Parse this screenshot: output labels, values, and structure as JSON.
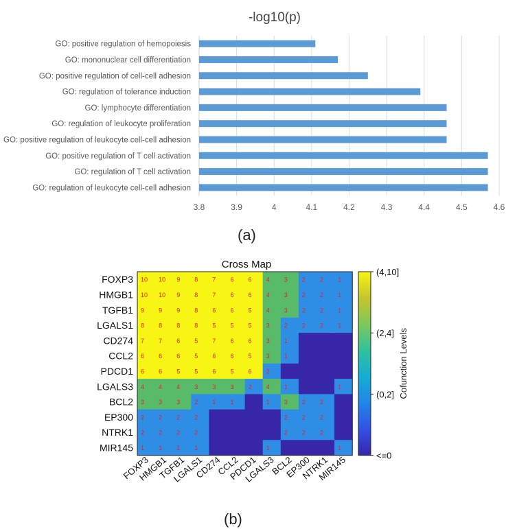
{
  "chart_data": [
    {
      "type": "bar",
      "orientation": "horizontal",
      "title": "-log10(p)",
      "panel_label": "(a)",
      "categories": [
        "GO: positive regulation of hemopoiesis",
        "GO: mononuclear cell differentiation",
        "GO: positive regulation of cell-cell adhesion",
        "GO: regulation of tolerance induction",
        "GO: lymphocyte differentiation",
        "GO: regulation of leukocyte proliferation",
        "GO: positive regulation of leukocyte cell-cell adhesion",
        "GO: positive regulation of T cell activation",
        "GO: regulation of T cell activation",
        "GO: regulation of leukocyte cell-cell adhesion"
      ],
      "values": [
        4.11,
        4.17,
        4.25,
        4.39,
        4.46,
        4.46,
        4.46,
        4.57,
        4.57,
        4.57
      ],
      "xlim": [
        3.8,
        4.6
      ],
      "xticks": [
        "3.8",
        "3.9",
        "4",
        "4.1",
        "4.2",
        "4.3",
        "4.4",
        "4.5",
        "4.6"
      ],
      "grid": "vertical",
      "bar_color": "#5b9bd5"
    },
    {
      "type": "heatmap",
      "title": "Cross Map",
      "panel_label": "(b)",
      "rows": [
        "FOXP3",
        "HMGB1",
        "TGFB1",
        "LGALS1",
        "CD274",
        "CCL2",
        "PDCD1",
        "LGALS3",
        "BCL2",
        "EP300",
        "NTRK1",
        "MIR145"
      ],
      "cols": [
        "FOXP3",
        "HMGB1",
        "TGFB1",
        "LGALS1",
        "CD274",
        "CCL2",
        "PDCD1",
        "LGALS3",
        "BCL2",
        "EP300",
        "NTRK1",
        "MIR145"
      ],
      "values": [
        [
          10,
          10,
          9,
          8,
          7,
          6,
          6,
          4,
          3,
          2,
          2,
          1
        ],
        [
          10,
          10,
          9,
          8,
          7,
          6,
          6,
          4,
          3,
          2,
          2,
          1
        ],
        [
          9,
          9,
          9,
          8,
          6,
          6,
          5,
          4,
          3,
          2,
          2,
          1
        ],
        [
          8,
          8,
          8,
          8,
          5,
          5,
          5,
          3,
          2,
          2,
          2,
          1
        ],
        [
          7,
          7,
          6,
          5,
          7,
          6,
          6,
          3,
          1,
          0,
          0,
          0
        ],
        [
          6,
          6,
          6,
          5,
          6,
          6,
          5,
          3,
          1,
          0,
          0,
          0
        ],
        [
          6,
          6,
          5,
          5,
          6,
          5,
          6,
          2,
          0,
          0,
          0,
          0
        ],
        [
          4,
          4,
          4,
          3,
          3,
          3,
          2,
          4,
          1,
          0,
          0,
          1
        ],
        [
          3,
          3,
          3,
          2,
          1,
          1,
          0,
          1,
          3,
          2,
          2,
          0
        ],
        [
          2,
          2,
          2,
          2,
          0,
          0,
          0,
          0,
          2,
          2,
          2,
          0
        ],
        [
          2,
          2,
          2,
          2,
          0,
          0,
          0,
          0,
          2,
          2,
          2,
          0
        ],
        [
          1,
          1,
          1,
          1,
          0,
          0,
          0,
          1,
          0,
          0,
          0,
          1
        ]
      ],
      "levels": [
        {
          "label": "(4,10]",
          "color": "#f7f514"
        },
        {
          "label": "(2,4]",
          "color": "#58bb6a"
        },
        {
          "label": "(0,2]",
          "color": "#2e8ee6"
        },
        {
          "label": "<=0",
          "color": "#3726a8"
        }
      ],
      "colorbar_label": "Cofunction Levels",
      "cell_text_color": "#e8222a"
    }
  ]
}
